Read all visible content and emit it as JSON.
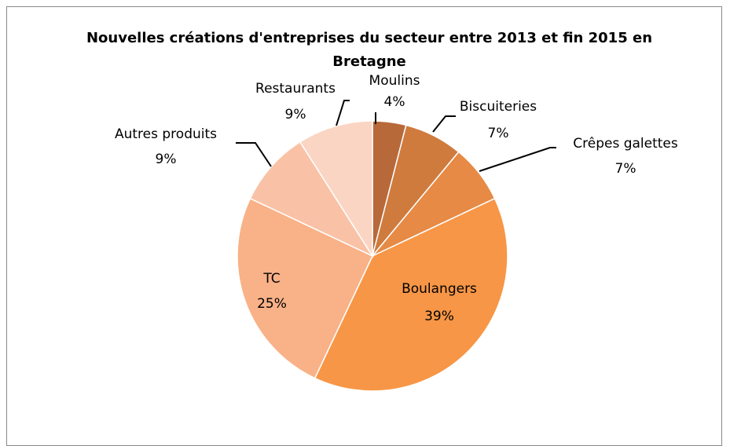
{
  "chart_data": {
    "type": "pie",
    "title": "Nouvelles créations d'entreprises du secteur entre 2013 et fin 2015 en Bretagne",
    "categories": [
      "Moulins",
      "Biscuiteries",
      "Crêpes galettes",
      "Boulangers",
      "TC",
      "Autres produits",
      "Restaurants"
    ],
    "values": [
      4,
      7,
      7,
      39,
      25,
      9,
      9
    ],
    "value_labels": [
      "4%",
      "7%",
      "7%",
      "39%",
      "25%",
      "9%",
      "9%"
    ],
    "colors": [
      "#b8693a",
      "#cf7b3e",
      "#e68a45",
      "#f79646",
      "#f9b187",
      "#f9c2a6",
      "#fbd5c3"
    ]
  }
}
